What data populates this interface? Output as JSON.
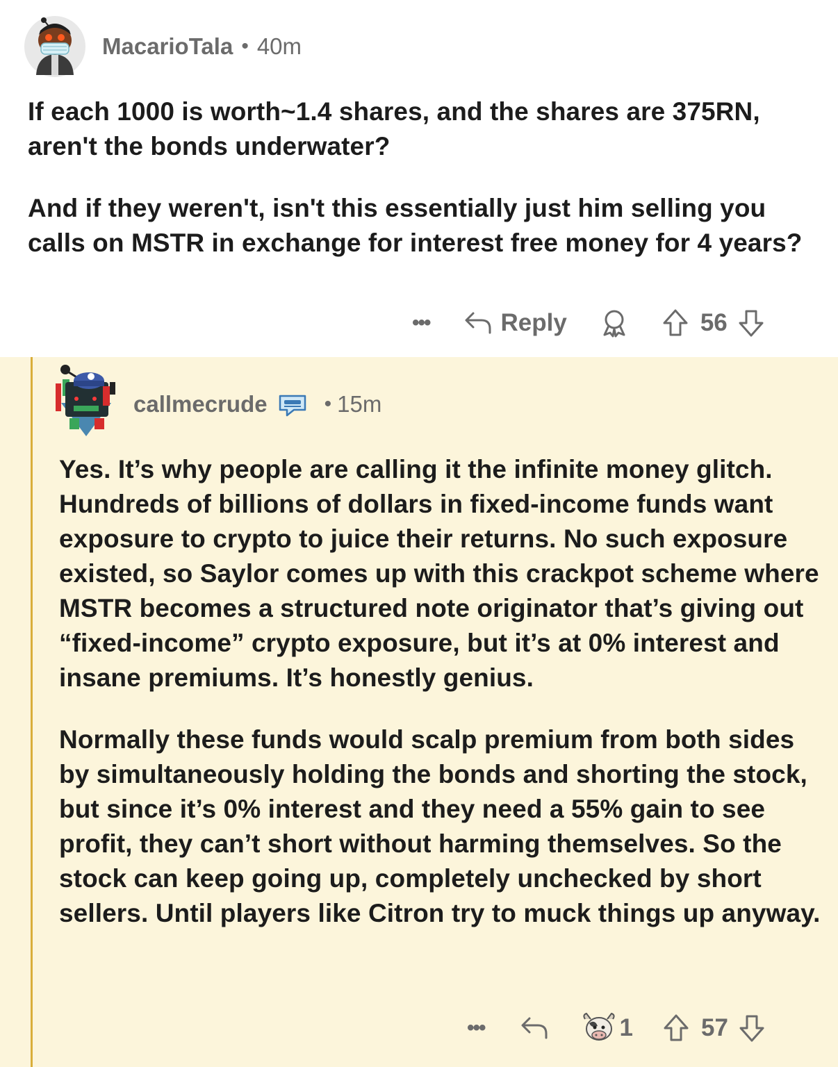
{
  "comment1": {
    "username": "MacarioTala",
    "separator": "•",
    "time": "40m",
    "paragraphs": [
      "If each 1000 is worth~1.4 shares, and the shares are 375RN, aren't the bonds underwater?",
      "And if they weren't, isn't this essentially just him selling you calls on MSTR in exchange for interest free money for 4 years?"
    ],
    "actions": {
      "more": "•••",
      "reply": "Reply",
      "score": "56"
    }
  },
  "comment2": {
    "username": "callmecrude",
    "separator": "•",
    "time": "15m",
    "paragraphs": [
      "Yes. It’s why people are calling it the infinite money glitch. Hundreds of billions of dollars in fixed-income funds want exposure to crypto to juice their returns. No such exposure existed, so Saylor comes up with this crackpot scheme where MSTR becomes a structured note originator that’s giving out “fixed-income” crypto exposure, but it’s at 0% interest and insane premiums. It’s honestly genius.",
      "Normally these funds would scalp premium from both sides by simultaneously holding the bonds and shorting the stock, but since it’s 0% interest and they need a 55% gain to see profit, they can’t short without harming themselves. So the stock can keep going up, completely unchecked by short sellers. Until players like Citron try to muck things up anyway."
    ],
    "actions": {
      "more": "•••",
      "award_count": "1",
      "score": "57"
    }
  },
  "colors": {
    "highlight_bg": "#fcf5db",
    "thread_line": "#d9ae3a",
    "meta_text": "#6b6b6b",
    "body_text": "#1c1c1c"
  }
}
